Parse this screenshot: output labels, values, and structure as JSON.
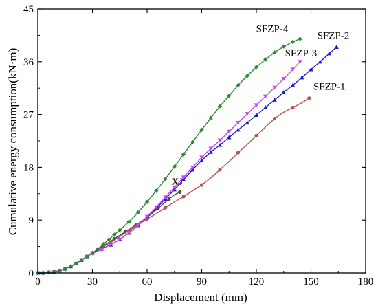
{
  "chart_data": {
    "type": "line",
    "xlabel": "Displacement (mm)",
    "ylabel": "Cumulative energy consumption(kN·m)",
    "xlim": [
      0,
      180
    ],
    "ylim": [
      0,
      45
    ],
    "xticks": [
      0,
      30,
      60,
      90,
      120,
      150,
      180
    ],
    "yticks": [
      0,
      9,
      18,
      27,
      36,
      45
    ],
    "grid": false,
    "legend": "inline labels",
    "series": [
      {
        "name": "XJ",
        "color": "#4d4d4d",
        "marker": "circle",
        "x": [
          0,
          3,
          6,
          9,
          12,
          15,
          18,
          21,
          24,
          27,
          30,
          33,
          36,
          39,
          42,
          45,
          48,
          51,
          54,
          57,
          60,
          63,
          66,
          69,
          72,
          75,
          78
        ],
        "y": [
          0,
          0,
          0.1,
          0.2,
          0.4,
          0.7,
          1.1,
          1.6,
          2.2,
          2.8,
          3.4,
          4.0,
          4.6,
          5.2,
          5.8,
          6.4,
          7.0,
          7.6,
          8.2,
          8.8,
          9.5,
          10.2,
          11.0,
          11.8,
          12.6,
          13.3,
          13.8
        ]
      },
      {
        "name": "SFZP-1",
        "color": "#c0504d",
        "marker": "circle",
        "x": [
          0,
          3,
          6,
          9,
          12,
          15,
          18,
          21,
          24,
          27,
          30,
          35,
          40,
          45,
          50,
          55,
          60,
          65,
          70,
          75,
          80,
          85,
          90,
          95,
          100,
          105,
          110,
          115,
          120,
          125,
          130,
          135,
          140,
          145,
          149
        ],
        "y": [
          0,
          0,
          0.1,
          0.2,
          0.4,
          0.7,
          1.1,
          1.6,
          2.2,
          2.8,
          3.4,
          4.3,
          5.2,
          6.2,
          7.2,
          8.2,
          9.2,
          10.1,
          11.1,
          12.1,
          13.0,
          14.0,
          15.0,
          16.2,
          17.6,
          19.0,
          20.5,
          21.9,
          23.4,
          24.9,
          26.3,
          27.4,
          28.2,
          29.0,
          29.8
        ]
      },
      {
        "name": "SFZP-2",
        "color": "#1a1adf",
        "marker": "triangle",
        "x": [
          0,
          3,
          6,
          9,
          12,
          15,
          18,
          21,
          24,
          27,
          30,
          35,
          40,
          45,
          50,
          55,
          60,
          65,
          70,
          75,
          80,
          85,
          90,
          95,
          100,
          105,
          110,
          115,
          120,
          125,
          130,
          135,
          140,
          145,
          150,
          155,
          160,
          164
        ],
        "y": [
          0,
          0,
          0.1,
          0.2,
          0.4,
          0.7,
          1.1,
          1.6,
          2.2,
          2.8,
          3.4,
          4.1,
          4.8,
          5.7,
          6.8,
          8.1,
          9.5,
          11.0,
          12.6,
          14.2,
          15.9,
          17.6,
          19.2,
          20.6,
          21.8,
          23.1,
          24.4,
          25.6,
          26.9,
          28.2,
          29.5,
          30.8,
          32.0,
          33.3,
          34.7,
          36.0,
          37.4,
          38.5
        ]
      },
      {
        "name": "SFZP-3",
        "color": "#cc44ee",
        "marker": "triangle-down",
        "x": [
          0,
          3,
          6,
          9,
          12,
          15,
          18,
          21,
          24,
          27,
          30,
          35,
          40,
          45,
          50,
          55,
          60,
          65,
          70,
          75,
          80,
          85,
          90,
          95,
          100,
          105,
          110,
          115,
          120,
          125,
          130,
          135,
          140,
          144
        ],
        "y": [
          0,
          0,
          0.1,
          0.2,
          0.4,
          0.7,
          1.1,
          1.6,
          2.2,
          2.8,
          3.3,
          4.0,
          4.8,
          5.7,
          6.8,
          8.1,
          9.6,
          11.2,
          12.9,
          14.6,
          16.3,
          18.0,
          19.7,
          21.2,
          22.6,
          24.1,
          25.6,
          27.1,
          28.6,
          30.1,
          31.6,
          33.1,
          34.7,
          36.0
        ]
      },
      {
        "name": "SFZP-4",
        "color": "#2e8b2e",
        "marker": "diamond",
        "x": [
          0,
          3,
          6,
          9,
          12,
          15,
          18,
          21,
          24,
          27,
          30,
          33,
          36,
          39,
          42,
          45,
          50,
          55,
          60,
          65,
          70,
          75,
          80,
          85,
          90,
          95,
          100,
          105,
          110,
          115,
          120,
          125,
          130,
          135,
          140,
          144
        ],
        "y": [
          0,
          0,
          0.1,
          0.2,
          0.4,
          0.7,
          1.1,
          1.6,
          2.2,
          2.8,
          3.4,
          4.1,
          4.9,
          5.7,
          6.5,
          7.3,
          8.7,
          10.3,
          12.1,
          14.0,
          16.0,
          18.1,
          20.2,
          22.3,
          24.4,
          26.4,
          28.4,
          30.2,
          32.0,
          33.6,
          35.1,
          36.4,
          37.6,
          38.6,
          39.4,
          39.9
        ]
      }
    ]
  }
}
